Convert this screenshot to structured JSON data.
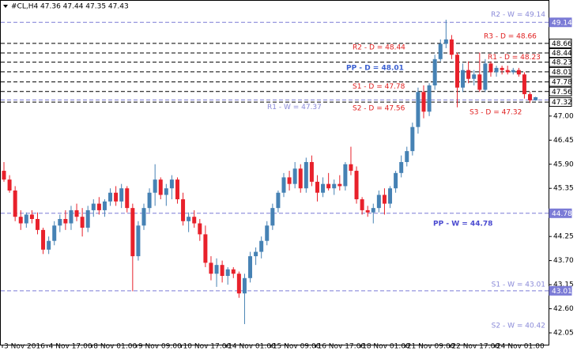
{
  "chart_data": {
    "type": "candlestick",
    "title": "#CL,H4  47.36 47.44 47.35 47.43",
    "categories": [
      "3 Nov 2016",
      null,
      null,
      null,
      null,
      null,
      null,
      null,
      "4 Nov 17:00",
      null,
      null,
      null,
      null,
      null,
      null,
      null,
      "8 Nov 01:00",
      null,
      null,
      null,
      null,
      null,
      null,
      null,
      "9 Nov 09:00",
      null,
      null,
      null,
      null,
      null,
      null,
      null,
      "10 Nov 17:00",
      null,
      null,
      null,
      null,
      null,
      null,
      null,
      "14 Nov 01:00",
      null,
      null,
      null,
      null,
      null,
      null,
      null,
      "15 Nov 09:00",
      null,
      null,
      null,
      null,
      null,
      null,
      null,
      "16 Nov 17:00",
      null,
      null,
      null,
      null,
      null,
      null,
      null,
      "18 Nov 01:00",
      null,
      null,
      null,
      null,
      null,
      null,
      null,
      "21 Nov 09:00",
      null,
      null,
      null,
      null,
      null,
      null,
      null,
      "22 Nov 17:00",
      null,
      null,
      null,
      null,
      null,
      null,
      null,
      "24 Nov 01:00",
      null,
      null,
      null,
      null,
      null,
      null,
      null
    ],
    "open": [
      45.75,
      45.55,
      45.3,
      44.7,
      44.55,
      44.75,
      44.65,
      44.4,
      43.95,
      44.15,
      44.5,
      44.65,
      44.55,
      44.85,
      44.7,
      44.45,
      44.85,
      45.0,
      44.85,
      45.05,
      45.25,
      45.05,
      45.35,
      44.9,
      43.8,
      44.5,
      44.9,
      45.25,
      45.55,
      45.2,
      45.35,
      45.55,
      45.1,
      44.6,
      44.7,
      44.55,
      44.3,
      43.65,
      43.4,
      43.6,
      43.35,
      43.5,
      43.4,
      42.95,
      43.3,
      43.8,
      43.9,
      44.15,
      44.5,
      44.9,
      45.25,
      45.6,
      45.45,
      45.8,
      45.35,
      45.95,
      45.5,
      45.25,
      45.45,
      45.35,
      45.45,
      45.4,
      45.9,
      45.75,
      45.1,
      44.85,
      44.8,
      44.9,
      45.2,
      45.0,
      45.35,
      45.7,
      45.95,
      46.2,
      46.75,
      47.55,
      47.1,
      47.7,
      48.3,
      48.65,
      48.75,
      48.4,
      47.65,
      48.05,
      47.85,
      47.95,
      47.6,
      48.2,
      48.0,
      48.1,
      48.05,
      48.0,
      48.05,
      47.95,
      47.5,
      47.36
    ],
    "high": [
      45.95,
      45.65,
      45.4,
      44.85,
      44.8,
      44.85,
      44.8,
      44.45,
      44.25,
      44.6,
      44.75,
      44.85,
      44.95,
      45.0,
      44.9,
      44.95,
      45.1,
      45.15,
      45.1,
      45.35,
      45.4,
      45.45,
      45.4,
      45.0,
      44.6,
      45.0,
      45.35,
      45.9,
      45.6,
      45.45,
      45.65,
      45.6,
      45.25,
      44.8,
      44.85,
      44.65,
      44.5,
      43.8,
      43.75,
      43.7,
      43.55,
      43.55,
      43.45,
      43.4,
      43.9,
      44.0,
      44.25,
      44.6,
      45.0,
      45.3,
      45.7,
      45.75,
      45.95,
      45.9,
      46.05,
      46.1,
      45.65,
      45.6,
      45.7,
      45.55,
      45.65,
      45.95,
      46.3,
      45.85,
      45.15,
      44.95,
      45.0,
      45.3,
      45.35,
      45.4,
      45.75,
      46.1,
      46.3,
      46.85,
      47.65,
      47.7,
      47.75,
      48.4,
      48.75,
      49.2,
      48.85,
      48.45,
      48.2,
      48.25,
      48.05,
      48.45,
      48.3,
      48.25,
      48.15,
      48.15,
      48.15,
      48.1,
      48.1,
      48.0,
      47.55,
      47.44
    ],
    "low": [
      45.5,
      45.25,
      44.6,
      44.4,
      44.45,
      44.55,
      44.3,
      43.85,
      43.85,
      44.05,
      44.35,
      44.4,
      44.4,
      44.6,
      44.25,
      44.35,
      44.7,
      44.75,
      44.7,
      44.95,
      44.95,
      44.9,
      44.8,
      43.0,
      43.7,
      44.4,
      44.8,
      44.95,
      45.1,
      44.95,
      45.1,
      45.0,
      44.5,
      44.35,
      44.45,
      44.15,
      43.55,
      43.25,
      43.1,
      43.2,
      43.15,
      43.3,
      42.85,
      42.25,
      43.2,
      43.6,
      43.75,
      44.05,
      44.4,
      44.8,
      45.15,
      45.3,
      45.35,
      45.25,
      45.25,
      45.4,
      45.05,
      45.15,
      45.3,
      45.2,
      45.3,
      45.3,
      45.65,
      45.0,
      44.75,
      44.7,
      44.55,
      44.8,
      44.75,
      44.9,
      45.25,
      45.6,
      45.85,
      46.1,
      46.6,
      46.95,
      47.0,
      47.6,
      48.25,
      48.55,
      48.3,
      47.2,
      47.55,
      47.75,
      47.7,
      47.55,
      47.55,
      47.9,
      47.9,
      47.95,
      47.95,
      47.95,
      47.9,
      47.4,
      47.3,
      47.35
    ],
    "close": [
      45.55,
      45.3,
      44.7,
      44.55,
      44.75,
      44.65,
      44.4,
      43.95,
      44.15,
      44.5,
      44.65,
      44.55,
      44.85,
      44.7,
      44.45,
      44.85,
      45.0,
      44.85,
      45.05,
      45.25,
      45.05,
      45.35,
      44.9,
      43.8,
      44.5,
      44.9,
      45.25,
      45.55,
      45.2,
      45.35,
      45.55,
      45.1,
      44.6,
      44.7,
      44.55,
      44.3,
      43.65,
      43.4,
      43.6,
      43.35,
      43.5,
      43.4,
      42.95,
      43.3,
      43.8,
      43.9,
      44.15,
      44.5,
      44.9,
      45.25,
      45.6,
      45.45,
      45.8,
      45.35,
      45.95,
      45.5,
      45.25,
      45.45,
      45.35,
      45.45,
      45.4,
      45.9,
      45.75,
      45.1,
      44.85,
      44.8,
      44.9,
      45.2,
      45.0,
      45.35,
      45.7,
      45.95,
      46.2,
      46.75,
      47.55,
      47.1,
      47.7,
      48.3,
      48.65,
      48.75,
      48.4,
      47.65,
      48.05,
      47.85,
      47.95,
      47.6,
      48.2,
      48.0,
      48.1,
      48.05,
      48.0,
      48.05,
      47.95,
      47.5,
      47.36,
      47.43
    ],
    "up_color": "#4682b4",
    "down_color": "#e8212b",
    "ylim": [
      41.78,
      49.65
    ],
    "yticks": [
      {
        "value": 47.0,
        "label": "47.00"
      },
      46.45,
      {
        "value": 45.9,
        "label": "45.90"
      },
      45.35,
      44.25,
      {
        "value": 43.7,
        "label": "43.70"
      },
      43.15,
      {
        "value": 42.6,
        "label": "42.60"
      },
      42.05
    ],
    "levels": [
      {
        "label": "R2 - W = 49.14",
        "value": 49.14,
        "line_color": "#7b7bd6",
        "label_color": "#8a8ad8"
      },
      {
        "label": "R3 - D = 48.66",
        "value": 48.66,
        "line_color": "#000000",
        "label_color": "#e02020"
      },
      {
        "label": "R2 - D = 48.44",
        "value": 48.44,
        "line_color": "#000000",
        "label_color": "#e02020"
      },
      {
        "label": "R1 - D = 48.23",
        "value": 48.23,
        "line_color": "#000000",
        "label_color": "#e02020"
      },
      {
        "label": "PP - D = 48.01",
        "value": 48.01,
        "line_color": "#000000",
        "label_color": "#3a5fd0"
      },
      {
        "label": "S1 - D = 47.78",
        "value": 47.78,
        "line_color": "#000000",
        "label_color": "#e02020"
      },
      {
        "label": "S2 - D = 47.56",
        "value": 47.56,
        "line_color": "#000000",
        "label_color": "#e02020"
      },
      {
        "label": "R1 - W = 47.37",
        "value": 47.37,
        "line_color": "#7b7bd6",
        "label_color": "#8a8ad8"
      },
      {
        "label": "S3 - D = 47.32",
        "value": 47.32,
        "line_color": "#000000",
        "label_color": "#e02020"
      },
      {
        "label": "PP - W = 44.78",
        "value": 44.78,
        "line_color": "#7b7bd6",
        "label_color": "#4a4ad0"
      },
      {
        "label": "S1 - W = 43.01",
        "value": 43.01,
        "line_color": "#7b7bd6",
        "label_color": "#8a8ad8"
      },
      {
        "label": "S2 - W = 40.42",
        "value": 40.42,
        "line_color": "#7b7bd6",
        "label_color": "#8a8ad8"
      }
    ]
  }
}
